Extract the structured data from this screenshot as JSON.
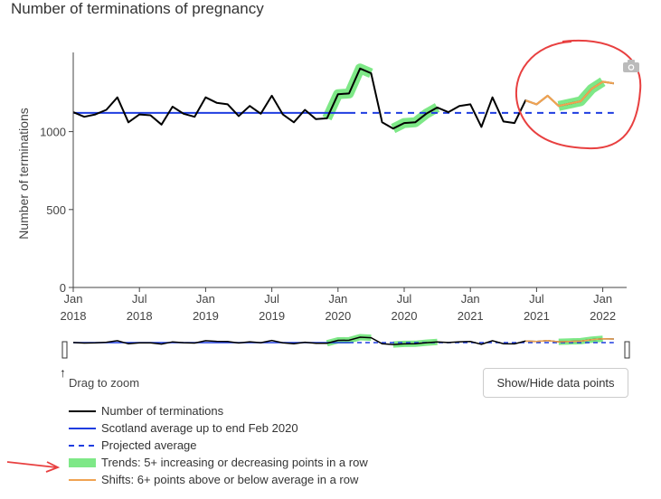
{
  "title": "Number of terminations of pregnancy",
  "chart_data": {
    "type": "line",
    "ylabel": "Number of terminations",
    "xlabel": "",
    "ylim": [
      0,
      1500
    ],
    "yticks": [
      0,
      500,
      1000
    ],
    "x_ticks": [
      {
        "line1": "Jan",
        "line2": "2018",
        "index": 0
      },
      {
        "line1": "Jul",
        "line2": "2018",
        "index": 6
      },
      {
        "line1": "Jan",
        "line2": "2019",
        "index": 12
      },
      {
        "line1": "Jul",
        "line2": "2019",
        "index": 18
      },
      {
        "line1": "Jan",
        "line2": "2020",
        "index": 24
      },
      {
        "line1": "Jul",
        "line2": "2020",
        "index": 30
      },
      {
        "line1": "Jan",
        "line2": "2021",
        "index": 36
      },
      {
        "line1": "Jul",
        "line2": "2021",
        "index": 42
      },
      {
        "line1": "Jan",
        "line2": "2022",
        "index": 48
      }
    ],
    "x_start": "2018-01",
    "series": [
      {
        "name": "Number of terminations",
        "color": "#000000",
        "values": [
          1125,
          1095,
          1110,
          1140,
          1220,
          1060,
          1110,
          1105,
          1045,
          1160,
          1115,
          1095,
          1220,
          1185,
          1175,
          1100,
          1165,
          1115,
          1230,
          1110,
          1060,
          1140,
          1080,
          1085,
          1240,
          1245,
          1405,
          1375,
          1060,
          1020,
          1055,
          1060,
          1115,
          1155,
          1125,
          1165,
          1175,
          1030,
          1220,
          1065,
          1055,
          1200,
          1175,
          1230,
          1165,
          1180,
          1195,
          1275,
          1320,
          1310
        ]
      },
      {
        "name": "Scotland average up to end Feb 2020",
        "color": "#1f3de0",
        "value": 1120,
        "from_index": 0,
        "to_index": 25
      },
      {
        "name": "Projected average",
        "color": "#1f3de0",
        "value": 1120,
        "from_index": 25,
        "to_index": 49
      },
      {
        "name": "Trends: 5+ increasing or decreasing points in a row",
        "color": "#7ee887",
        "segments": [
          [
            23,
            27
          ],
          [
            29,
            33
          ],
          [
            44,
            48
          ]
        ]
      },
      {
        "name": "Shifts: 6+ points above or below average in a row",
        "color": "#f0a352",
        "segments": [
          [
            41,
            49
          ]
        ]
      }
    ],
    "annotations": [
      "red circle around Jul 2021 – Jan 2022 data",
      "red arrow pointing at Trends legend entry"
    ]
  },
  "controls": {
    "drag_hint": "Drag to zoom",
    "toggle_button": "Show/Hide data points"
  },
  "colors": {
    "annotation": "#e84040",
    "axis": "#444444"
  }
}
